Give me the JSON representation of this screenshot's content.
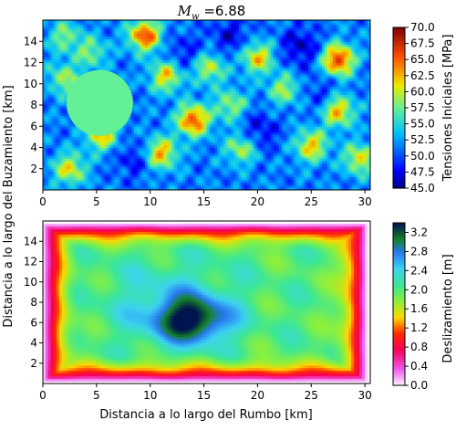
{
  "figure": {
    "title_symbol": "M",
    "title_subscript": "w",
    "title_value": " =6.88"
  },
  "chart_data": [
    {
      "type": "heatmap",
      "name": "initial-stress",
      "xlabel": "",
      "ylabel": "",
      "xlim": [
        0,
        30.5
      ],
      "ylim": [
        0,
        16
      ],
      "x_ticks": [
        0,
        5,
        10,
        15,
        20,
        25,
        30
      ],
      "y_ticks": [
        2,
        4,
        6,
        8,
        10,
        12,
        14
      ],
      "grid": false,
      "colorbar": {
        "label": "Tensiones Iniciales [MPa]",
        "range": [
          45.0,
          70.0
        ],
        "ticks": [
          "45.0",
          "47.5",
          "50.0",
          "52.5",
          "55.0",
          "57.5",
          "60.0",
          "62.5",
          "65.0",
          "67.5",
          "70.0"
        ],
        "colormap": "jet"
      },
      "field": {
        "background_value": 51.5,
        "hotspots": [
          {
            "x": 5.5,
            "y": 5.2,
            "value": 62
          },
          {
            "x": 2.5,
            "y": 2.0,
            "value": 61
          },
          {
            "x": 2.0,
            "y": 10.5,
            "value": 59
          },
          {
            "x": 4.5,
            "y": 13.0,
            "value": 58
          },
          {
            "x": 9.5,
            "y": 14.6,
            "value": 66
          },
          {
            "x": 11.5,
            "y": 10.8,
            "value": 62
          },
          {
            "x": 14.0,
            "y": 6.6,
            "value": 66
          },
          {
            "x": 11.0,
            "y": 3.5,
            "value": 63
          },
          {
            "x": 15.5,
            "y": 11.5,
            "value": 60
          },
          {
            "x": 17.5,
            "y": 8.0,
            "value": 59
          },
          {
            "x": 20.0,
            "y": 12.5,
            "value": 62
          },
          {
            "x": 18.5,
            "y": 4.0,
            "value": 60
          },
          {
            "x": 22.5,
            "y": 9.5,
            "value": 59
          },
          {
            "x": 25.0,
            "y": 4.2,
            "value": 62
          },
          {
            "x": 27.5,
            "y": 12.3,
            "value": 67
          },
          {
            "x": 27.5,
            "y": 7.5,
            "value": 63
          },
          {
            "x": 29.5,
            "y": 3.0,
            "value": 61
          },
          {
            "x": 2.0,
            "y": 14.5,
            "value": 58
          }
        ],
        "lowspots": [
          {
            "x": 20.0,
            "y": 5.5,
            "value": 47
          },
          {
            "x": 24.0,
            "y": 13.5,
            "value": 46.5
          },
          {
            "x": 17.5,
            "y": 14.5,
            "value": 47.5
          },
          {
            "x": 8.5,
            "y": 3.0,
            "value": 48
          },
          {
            "x": 13.0,
            "y": 12.8,
            "value": 48
          },
          {
            "x": 26.0,
            "y": 9.0,
            "value": 48.5
          }
        ],
        "disc": {
          "center": [
            5.3,
            8.2
          ],
          "radius": 3.1,
          "value": 57.5
        }
      }
    },
    {
      "type": "heatmap",
      "name": "slip",
      "xlabel": "Distancia a lo largo del Rumbo [km]",
      "ylabel": "Distancia a lo largo del Buzamiento [km]",
      "xlim": [
        0,
        30.5
      ],
      "ylim": [
        0,
        16
      ],
      "x_ticks": [
        0,
        5,
        10,
        15,
        20,
        25,
        30
      ],
      "y_ticks": [
        2,
        4,
        6,
        8,
        10,
        12,
        14
      ],
      "grid": false,
      "colorbar": {
        "label": "Deslizamiento [m]",
        "range": [
          0.0,
          3.4
        ],
        "ticks": [
          "0.0",
          "0.4",
          "0.8",
          "1.2",
          "1.6",
          "2.0",
          "2.4",
          "2.8",
          "3.2"
        ],
        "colormap": "gist_ncar"
      },
      "field": {
        "peak_location": {
          "x": 13.8,
          "y": 6.3
        },
        "peak_value": 3.3,
        "edge_value": 0.0,
        "plateau_value": 2.0
      }
    }
  ]
}
